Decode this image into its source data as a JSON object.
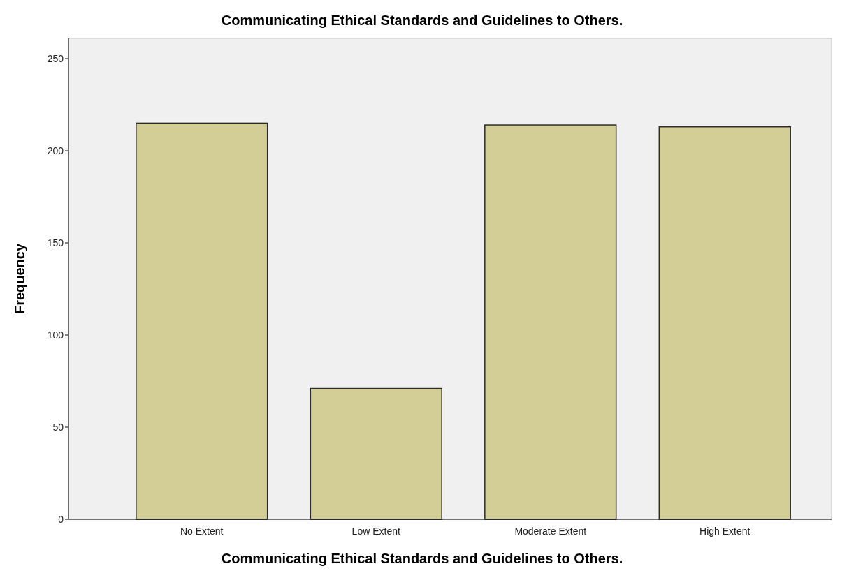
{
  "chart_data": {
    "type": "bar",
    "title": "Communicating Ethical Standards and Guidelines to Others.",
    "xlabel": "Communicating Ethical Standards and Guidelines to Others.",
    "ylabel": "Frequency",
    "categories": [
      "No Extent",
      "Low Extent",
      "Moderate Extent",
      "High Extent"
    ],
    "values": [
      215,
      71,
      214,
      213
    ],
    "color": "#d3cd96",
    "ylim": [
      0,
      261
    ],
    "yticks": [
      0,
      50,
      100,
      150,
      200,
      250
    ],
    "grid": false
  }
}
